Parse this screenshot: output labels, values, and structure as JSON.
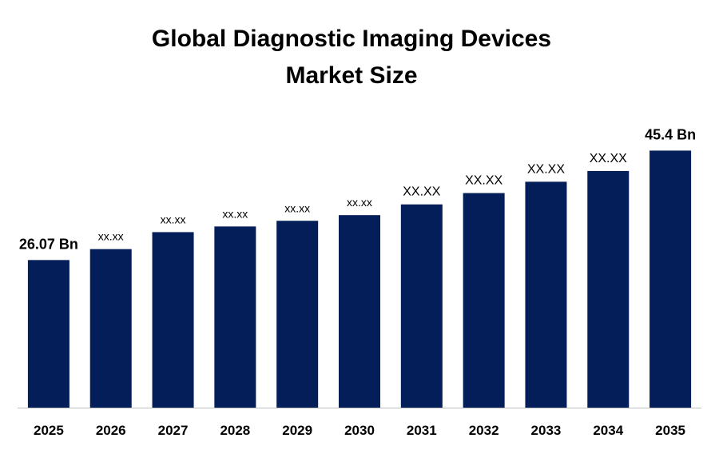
{
  "chart_data": {
    "type": "bar",
    "title_lines": [
      "Global Diagnostic Imaging Devices",
      "Market Size"
    ],
    "categories": [
      "2025",
      "2026",
      "2027",
      "2028",
      "2029",
      "2030",
      "2031",
      "2032",
      "2033",
      "2034",
      "2035"
    ],
    "values": [
      26.07,
      28.0,
      31.0,
      32.0,
      33.0,
      34.0,
      35.9,
      37.9,
      39.9,
      41.8,
      45.4
    ],
    "data_labels": [
      "26.07 Bn",
      "xx.xx",
      "xx.xx",
      "xx.xx",
      "xx.xx",
      "xx.xx",
      "XX.XX",
      "XX.XX",
      "XX.XX",
      "XX.XX",
      "45.4 Bn"
    ],
    "xlabel": "",
    "ylabel": "",
    "ylim": [
      0,
      48
    ],
    "grid": false,
    "legend": "none",
    "bar_color": "#041E5A",
    "axis_color": "#BFBFBF"
  }
}
